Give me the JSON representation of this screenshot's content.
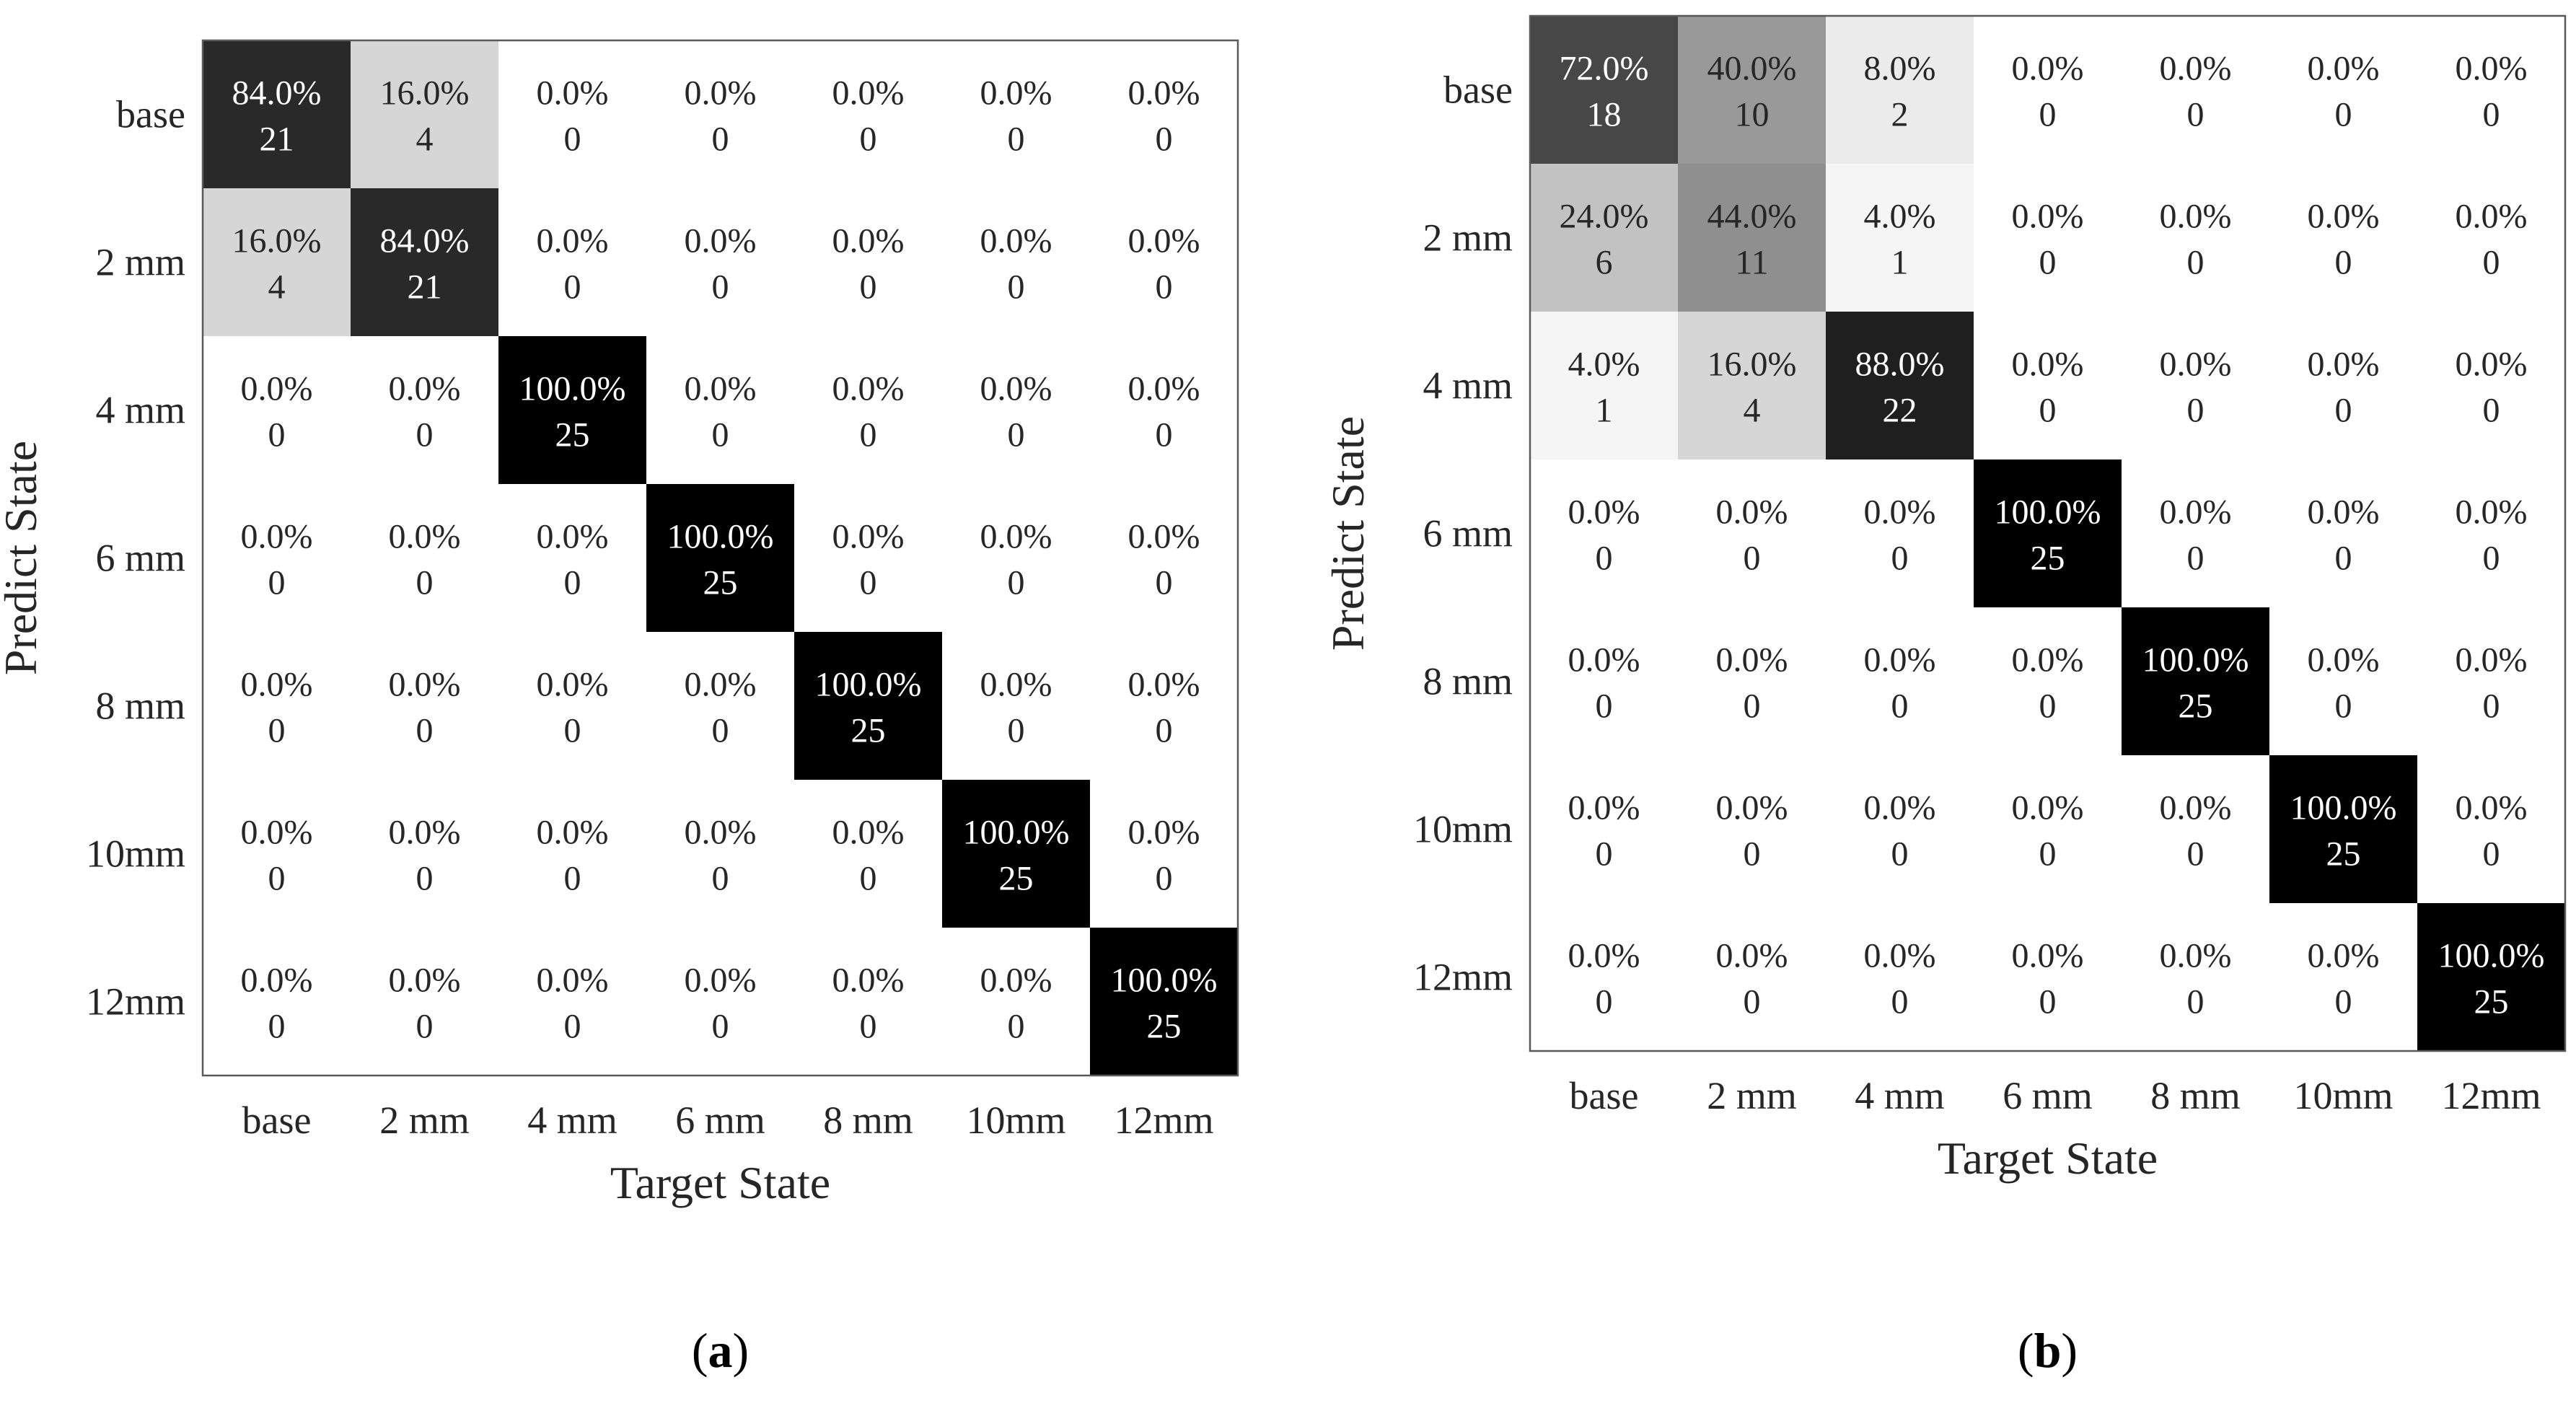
{
  "chart_data": [
    {
      "type": "heatmap",
      "panel_label": "a",
      "xlabel": "Target State",
      "ylabel": "Predict State",
      "x_categories": [
        "base",
        "2 mm",
        "4 mm",
        "6 mm",
        "8 mm",
        "10mm",
        "12mm"
      ],
      "y_categories": [
        "base",
        "2 mm",
        "4 mm",
        "6 mm",
        "8 mm",
        "10mm",
        "12mm"
      ],
      "percent": [
        [
          "84.0%",
          "16.0%",
          "0.0%",
          "0.0%",
          "0.0%",
          "0.0%",
          "0.0%"
        ],
        [
          "16.0%",
          "84.0%",
          "0.0%",
          "0.0%",
          "0.0%",
          "0.0%",
          "0.0%"
        ],
        [
          "0.0%",
          "0.0%",
          "100.0%",
          "0.0%",
          "0.0%",
          "0.0%",
          "0.0%"
        ],
        [
          "0.0%",
          "0.0%",
          "0.0%",
          "100.0%",
          "0.0%",
          "0.0%",
          "0.0%"
        ],
        [
          "0.0%",
          "0.0%",
          "0.0%",
          "0.0%",
          "100.0%",
          "0.0%",
          "0.0%"
        ],
        [
          "0.0%",
          "0.0%",
          "0.0%",
          "0.0%",
          "0.0%",
          "100.0%",
          "0.0%"
        ],
        [
          "0.0%",
          "0.0%",
          "0.0%",
          "0.0%",
          "0.0%",
          "0.0%",
          "100.0%"
        ]
      ],
      "counts": [
        [
          21,
          4,
          0,
          0,
          0,
          0,
          0
        ],
        [
          4,
          21,
          0,
          0,
          0,
          0,
          0
        ],
        [
          0,
          0,
          25,
          0,
          0,
          0,
          0
        ],
        [
          0,
          0,
          0,
          25,
          0,
          0,
          0
        ],
        [
          0,
          0,
          0,
          0,
          25,
          0,
          0
        ],
        [
          0,
          0,
          0,
          0,
          0,
          25,
          0
        ],
        [
          0,
          0,
          0,
          0,
          0,
          0,
          25
        ]
      ],
      "color_max_count": 25
    },
    {
      "type": "heatmap",
      "panel_label": "b",
      "xlabel": "Target State",
      "ylabel": "Predict State",
      "x_categories": [
        "base",
        "2 mm",
        "4 mm",
        "6 mm",
        "8 mm",
        "10mm",
        "12mm"
      ],
      "y_categories": [
        "base",
        "2 mm",
        "4 mm",
        "6 mm",
        "8 mm",
        "10mm",
        "12mm"
      ],
      "percent": [
        [
          "72.0%",
          "40.0%",
          "8.0%",
          "0.0%",
          "0.0%",
          "0.0%",
          "0.0%"
        ],
        [
          "24.0%",
          "44.0%",
          "4.0%",
          "0.0%",
          "0.0%",
          "0.0%",
          "0.0%"
        ],
        [
          "4.0%",
          "16.0%",
          "88.0%",
          "0.0%",
          "0.0%",
          "0.0%",
          "0.0%"
        ],
        [
          "0.0%",
          "0.0%",
          "0.0%",
          "100.0%",
          "0.0%",
          "0.0%",
          "0.0%"
        ],
        [
          "0.0%",
          "0.0%",
          "0.0%",
          "0.0%",
          "100.0%",
          "0.0%",
          "0.0%"
        ],
        [
          "0.0%",
          "0.0%",
          "0.0%",
          "0.0%",
          "0.0%",
          "100.0%",
          "0.0%"
        ],
        [
          "0.0%",
          "0.0%",
          "0.0%",
          "0.0%",
          "0.0%",
          "0.0%",
          "100.0%"
        ]
      ],
      "counts": [
        [
          18,
          10,
          2,
          0,
          0,
          0,
          0
        ],
        [
          6,
          11,
          1,
          0,
          0,
          0,
          0
        ],
        [
          1,
          4,
          22,
          0,
          0,
          0,
          0
        ],
        [
          0,
          0,
          0,
          25,
          0,
          0,
          0
        ],
        [
          0,
          0,
          0,
          0,
          25,
          0,
          0
        ],
        [
          0,
          0,
          0,
          0,
          0,
          25,
          0
        ],
        [
          0,
          0,
          0,
          0,
          0,
          0,
          25
        ]
      ],
      "color_max_count": 25
    }
  ]
}
